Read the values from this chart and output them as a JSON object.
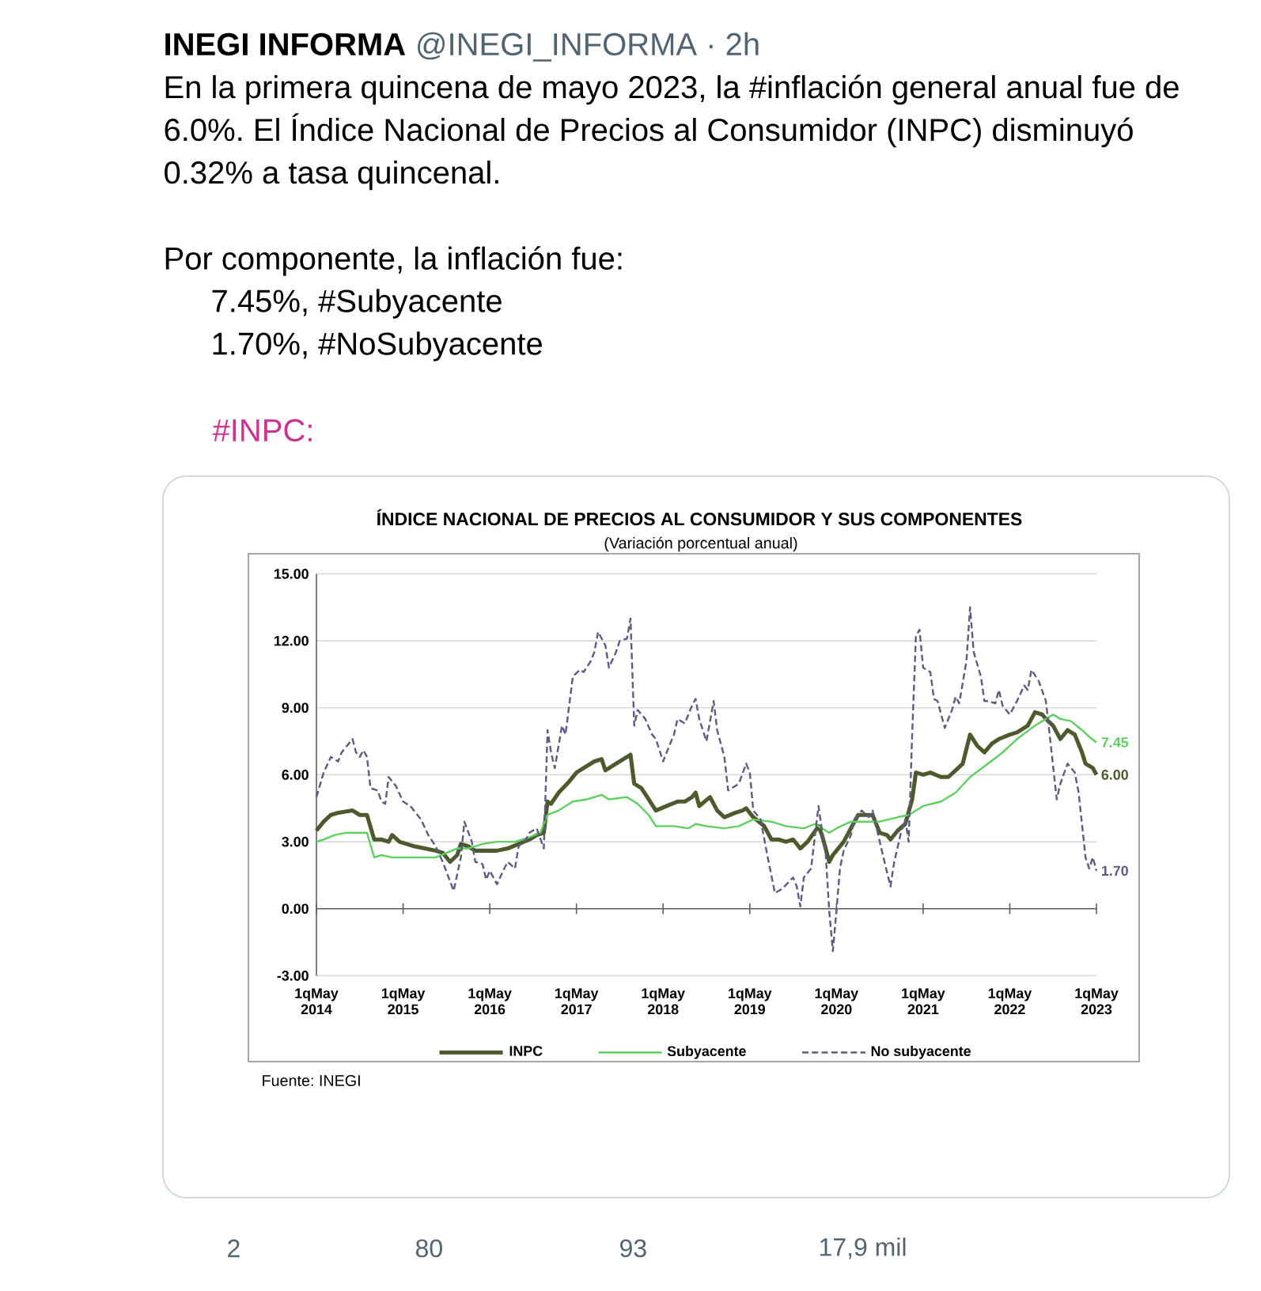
{
  "chart_data": {
    "type": "line",
    "title": "ÍNDICE NACIONAL DE PRECIOS AL CONSUMIDOR Y SUS COMPONENTES",
    "subtitle": "(Variación porcentual anual)",
    "annotations": [
      "INEGI INFORMA",
      "@INEGI_INFORMA · 2h",
      "En la primera quincena de mayo 2023, la #inflación general anual fue de 6.0%. El Índice Nacional de Precios al Consumidor (INPC) disminuyó 0.32% a tasa quincenal.",
      "Por componente, la inflación fue:",
      "7.45%, #Subyacente",
      "1.70%, #NoSubyacente",
      "#INPC:",
      "Fuente: INEGI",
      "2",
      "80",
      "93",
      "17,9 mil"
    ],
    "xlim": [
      "2014-05-01",
      "2023-05-01"
    ],
    "xticks": [
      {
        "value": "2014-05-01",
        "label": "1qMay 2014"
      },
      {
        "value": "2015-05-01",
        "label": "1qMay 2015"
      },
      {
        "value": "2016-05-01",
        "label": "1qMay 2016"
      },
      {
        "value": "2017-05-01",
        "label": "1qMay 2017"
      },
      {
        "value": "2018-05-01",
        "label": "1qMay 2018"
      },
      {
        "value": "2019-05-01",
        "label": "1qMay 2019"
      },
      {
        "value": "2020-05-01",
        "label": "1qMay 2020"
      },
      {
        "value": "2021-05-01",
        "label": "1qMay 2021"
      },
      {
        "value": "2022-05-01",
        "label": "1qMay 2022"
      },
      {
        "value": "2023-05-01",
        "label": "1qMay 2023"
      }
    ],
    "ylim": [
      -3,
      15
    ],
    "yticks": [
      {
        "value": -3,
        "label": "-3.00"
      },
      {
        "value": 0,
        "label": "0.00"
      },
      {
        "value": 3,
        "label": "3.00"
      },
      {
        "value": 6,
        "label": "6.00"
      },
      {
        "value": 9,
        "label": "9.00"
      },
      {
        "value": 12,
        "label": "12.00"
      },
      {
        "value": 15,
        "label": "15.00"
      }
    ],
    "grid": "y",
    "legend": "bottom",
    "series": [
      {
        "name": "INPC",
        "color": "#4d5a2e",
        "x": [
          "2014-05-01",
          "2014-06-01",
          "2014-07-01",
          "2014-08-01",
          "2014-10-01",
          "2014-11-01",
          "2014-12-01",
          "2015-01-01",
          "2015-02-01",
          "2015-03-01",
          "2015-03-16",
          "2015-04-16",
          "2015-05-16",
          "2015-06-16",
          "2015-08-01",
          "2015-09-16",
          "2015-10-16",
          "2015-11-16",
          "2015-12-16",
          "2016-01-01",
          "2016-02-01",
          "2016-03-01",
          "2016-05-01",
          "2016-06-01",
          "2016-07-16",
          "2016-09-01",
          "2016-10-16",
          "2016-11-16",
          "2016-12-16",
          "2017-01-01",
          "2017-01-16",
          "2017-02-16",
          "2017-04-01",
          "2017-05-01",
          "2017-06-01",
          "2017-07-16",
          "2017-08-16",
          "2017-09-01",
          "2017-10-16",
          "2017-11-16",
          "2017-12-16",
          "2018-01-01",
          "2018-02-01",
          "2018-03-01",
          "2018-04-01",
          "2018-05-16",
          "2018-07-01",
          "2018-08-01",
          "2018-09-01",
          "2018-09-16",
          "2018-10-01",
          "2018-11-16",
          "2018-12-16",
          "2019-01-16",
          "2019-03-01",
          "2019-04-01",
          "2019-04-16",
          "2019-05-16",
          "2019-07-01",
          "2019-08-01",
          "2019-09-01",
          "2019-10-01",
          "2019-11-01",
          "2019-12-01",
          "2020-01-01",
          "2020-02-16",
          "2020-03-01",
          "2020-04-01",
          "2020-04-16",
          "2020-06-01",
          "2020-07-01",
          "2020-08-01",
          "2020-09-01",
          "2020-10-01",
          "2020-11-01",
          "2020-12-01",
          "2020-12-16",
          "2021-01-16",
          "2021-02-16",
          "2021-03-16",
          "2021-04-01",
          "2021-05-01",
          "2021-06-01",
          "2021-07-16",
          "2021-08-16",
          "2021-09-16",
          "2021-10-16",
          "2021-11-16",
          "2021-12-16",
          "2022-01-16",
          "2022-02-16",
          "2022-03-16",
          "2022-05-01",
          "2022-06-01",
          "2022-07-16",
          "2022-08-16",
          "2022-09-16",
          "2022-10-01",
          "2022-11-01",
          "2022-12-01",
          "2023-01-01",
          "2023-02-01",
          "2023-03-01",
          "2023-03-16",
          "2023-04-16",
          "2023-05-01"
        ],
        "values": [
          3.5,
          3.9,
          4.2,
          4.3,
          4.4,
          4.2,
          4.2,
          3.1,
          3.1,
          3.0,
          3.3,
          3.0,
          2.9,
          2.8,
          2.7,
          2.6,
          2.5,
          2.1,
          2.4,
          2.9,
          2.8,
          2.6,
          2.6,
          2.6,
          2.7,
          2.9,
          3.1,
          3.3,
          3.4,
          4.8,
          4.7,
          5.2,
          5.7,
          6.1,
          6.3,
          6.6,
          6.7,
          6.2,
          6.5,
          6.7,
          6.9,
          5.6,
          5.4,
          4.9,
          4.4,
          4.6,
          4.8,
          4.8,
          5.0,
          5.2,
          4.6,
          5.0,
          4.4,
          4.1,
          4.3,
          4.4,
          4.5,
          4.1,
          3.7,
          3.1,
          3.1,
          3.0,
          3.1,
          2.7,
          3.0,
          3.7,
          3.3,
          2.1,
          2.4,
          3.0,
          3.6,
          4.2,
          4.2,
          4.2,
          3.4,
          3.3,
          3.1,
          3.5,
          3.8,
          4.9,
          6.1,
          6.0,
          6.1,
          5.9,
          5.9,
          6.2,
          6.5,
          7.8,
          7.3,
          7.0,
          7.4,
          7.6,
          7.8,
          7.9,
          8.2,
          8.8,
          8.7,
          8.5,
          8.2,
          7.6,
          8.0,
          7.8,
          7.0,
          6.5,
          6.3,
          6.0
        ],
        "value_labels": [
          null,
          null,
          null,
          null,
          null,
          null,
          null,
          null,
          null,
          null,
          null,
          null,
          null,
          null,
          null,
          null,
          null,
          null,
          null,
          null,
          null,
          null,
          null,
          null,
          null,
          null,
          null,
          null,
          null,
          null,
          null,
          null,
          null,
          null,
          null,
          null,
          null,
          null,
          null,
          null,
          null,
          null,
          null,
          null,
          null,
          null,
          null,
          null,
          null,
          null,
          null,
          null,
          null,
          null,
          null,
          null,
          null,
          null,
          null,
          null,
          null,
          null,
          null,
          null,
          null,
          null,
          null,
          null,
          null,
          null,
          null,
          null,
          null,
          null,
          null,
          null,
          null,
          null,
          null,
          null,
          null,
          null,
          null,
          null,
          null,
          null,
          null,
          null,
          null,
          null,
          null,
          null,
          null,
          null,
          null,
          null,
          null,
          null,
          null,
          null,
          null,
          null,
          null,
          null,
          null,
          "6.00"
        ]
      },
      {
        "name": "Subyacente",
        "color": "#5fcf5f",
        "x": [
          "2014-05-01",
          "2014-06-01",
          "2014-07-16",
          "2014-09-01",
          "2014-10-16",
          "2014-12-01",
          "2015-01-01",
          "2015-02-01",
          "2015-03-16",
          "2015-05-01",
          "2015-07-01",
          "2015-09-16",
          "2015-11-01",
          "2015-12-16",
          "2016-02-01",
          "2016-04-01",
          "2016-06-01",
          "2016-08-16",
          "2016-10-16",
          "2016-12-01",
          "2017-01-01",
          "2017-02-16",
          "2017-04-16",
          "2017-06-16",
          "2017-08-16",
          "2017-09-16",
          "2017-12-01",
          "2018-01-16",
          "2018-03-01",
          "2018-04-01",
          "2018-06-16",
          "2018-08-16",
          "2018-09-16",
          "2018-11-01",
          "2019-01-16",
          "2019-03-16",
          "2019-05-16",
          "2019-08-01",
          "2019-10-01",
          "2019-12-16",
          "2020-02-01",
          "2020-04-01",
          "2020-05-01",
          "2020-07-01",
          "2020-09-01",
          "2020-11-01",
          "2021-01-16",
          "2021-03-01",
          "2021-05-01",
          "2021-07-16",
          "2021-09-16",
          "2021-11-16",
          "2022-02-01",
          "2022-04-01",
          "2022-06-01",
          "2022-08-16",
          "2022-10-01",
          "2022-11-01",
          "2022-12-01",
          "2023-01-16",
          "2023-03-01",
          "2023-04-01",
          "2023-05-01"
        ],
        "values": [
          3.0,
          3.1,
          3.3,
          3.4,
          3.4,
          3.4,
          2.3,
          2.4,
          2.3,
          2.3,
          2.3,
          2.3,
          2.5,
          2.7,
          2.7,
          2.9,
          3.0,
          3.0,
          3.2,
          3.4,
          4.2,
          4.4,
          4.8,
          4.9,
          5.1,
          4.9,
          5.0,
          4.7,
          4.2,
          3.7,
          3.7,
          3.6,
          3.8,
          3.7,
          3.6,
          3.7,
          4.0,
          3.9,
          3.7,
          3.6,
          3.8,
          3.4,
          3.6,
          3.9,
          3.9,
          3.9,
          4.1,
          4.2,
          4.6,
          4.8,
          5.2,
          5.9,
          6.5,
          7.0,
          7.6,
          8.2,
          8.5,
          8.7,
          8.5,
          8.4,
          8.0,
          7.7,
          7.45
        ],
        "value_labels": [
          null,
          null,
          null,
          null,
          null,
          null,
          null,
          null,
          null,
          null,
          null,
          null,
          null,
          null,
          null,
          null,
          null,
          null,
          null,
          null,
          null,
          null,
          null,
          null,
          null,
          null,
          null,
          null,
          null,
          null,
          null,
          null,
          null,
          null,
          null,
          null,
          null,
          null,
          null,
          null,
          null,
          null,
          null,
          null,
          null,
          null,
          null,
          null,
          null,
          null,
          null,
          null,
          null,
          null,
          null,
          null,
          null,
          null,
          null,
          null,
          null,
          null,
          "7.45"
        ]
      },
      {
        "name": "No subyacente",
        "color": "#5c5c80",
        "line_style": "dashed",
        "x": [
          "2014-05-01",
          "2014-06-01",
          "2014-07-01",
          "2014-08-01",
          "2014-08-16",
          "2014-10-01",
          "2014-10-16",
          "2014-11-01",
          "2014-11-16",
          "2014-12-01",
          "2014-12-16",
          "2015-01-16",
          "2015-02-01",
          "2015-02-16",
          "2015-03-01",
          "2015-04-01",
          "2015-05-01",
          "2015-06-01",
          "2015-07-16",
          "2015-08-16",
          "2015-09-16",
          "2015-10-16",
          "2015-12-01",
          "2016-01-01",
          "2016-01-16",
          "2016-02-16",
          "2016-03-01",
          "2016-04-01",
          "2016-04-16",
          "2016-05-01",
          "2016-06-01",
          "2016-07-01",
          "2016-07-16",
          "2016-08-16",
          "2016-09-01",
          "2016-10-01",
          "2016-10-16",
          "2016-11-16",
          "2016-12-16",
          "2017-01-01",
          "2017-01-16",
          "2017-02-01",
          "2017-03-01",
          "2017-03-16",
          "2017-04-16",
          "2017-05-16",
          "2017-06-01",
          "2017-07-01",
          "2017-07-16",
          "2017-08-01",
          "2017-09-01",
          "2017-09-16",
          "2017-10-16",
          "2017-11-01",
          "2017-12-01",
          "2017-12-16",
          "2018-01-01",
          "2018-01-16",
          "2018-02-16",
          "2018-03-16",
          "2018-04-01",
          "2018-05-01",
          "2018-05-16",
          "2018-06-16",
          "2018-07-01",
          "2018-08-01",
          "2018-09-01",
          "2018-09-16",
          "2018-10-01",
          "2018-11-01",
          "2018-12-01",
          "2018-12-16",
          "2019-01-16",
          "2019-02-01",
          "2019-03-01",
          "2019-03-16",
          "2019-04-16",
          "2019-05-01",
          "2019-05-16",
          "2019-06-16",
          "2019-07-16",
          "2019-08-16",
          "2019-09-16",
          "2019-11-01",
          "2019-11-16",
          "2019-12-01",
          "2019-12-16",
          "2020-01-16",
          "2020-02-16",
          "2020-03-01",
          "2020-03-16",
          "2020-04-01",
          "2020-04-16",
          "2020-05-01",
          "2020-05-16",
          "2020-06-01",
          "2020-07-01",
          "2020-07-16",
          "2020-08-16",
          "2020-09-16",
          "2020-10-01",
          "2020-11-01",
          "2020-11-16",
          "2020-12-16",
          "2021-01-01",
          "2021-02-01",
          "2021-02-16",
          "2021-03-01",
          "2021-03-16",
          "2021-04-01",
          "2021-04-16",
          "2021-05-01",
          "2021-06-01",
          "2021-06-16",
          "2021-07-01",
          "2021-08-01",
          "2021-09-01",
          "2021-09-16",
          "2021-10-01",
          "2021-11-01",
          "2021-11-16",
          "2021-12-01",
          "2022-01-01",
          "2022-01-16",
          "2022-02-01",
          "2022-03-01",
          "2022-03-16",
          "2022-04-01",
          "2022-05-01",
          "2022-06-01",
          "2022-07-01",
          "2022-07-16",
          "2022-08-01",
          "2022-09-01",
          "2022-10-01",
          "2022-10-16",
          "2022-11-16",
          "2022-12-01",
          "2023-01-01",
          "2023-02-01",
          "2023-02-16",
          "2023-03-16",
          "2023-04-01",
          "2023-04-16",
          "2023-05-01"
        ],
        "values": [
          5.0,
          6.1,
          6.8,
          6.6,
          7.0,
          7.6,
          7.0,
          6.8,
          7.1,
          6.8,
          5.4,
          5.3,
          4.8,
          4.7,
          5.9,
          5.5,
          4.8,
          4.6,
          4.0,
          3.3,
          2.8,
          2.1,
          0.8,
          2.3,
          3.9,
          3.0,
          2.1,
          2.0,
          1.3,
          1.7,
          1.1,
          1.8,
          2.1,
          1.8,
          2.8,
          3.1,
          3.4,
          3.6,
          2.7,
          8.0,
          7.0,
          6.3,
          8.2,
          7.8,
          10.4,
          10.7,
          10.6,
          11.1,
          11.5,
          12.4,
          11.8,
          10.8,
          11.5,
          12.0,
          12.1,
          13.0,
          8.2,
          8.9,
          8.5,
          7.8,
          7.6,
          6.6,
          7.0,
          7.8,
          8.5,
          8.3,
          9.1,
          9.4,
          8.5,
          7.5,
          9.3,
          8.0,
          6.8,
          5.3,
          5.5,
          5.6,
          6.5,
          6.1,
          4.4,
          4.0,
          2.3,
          0.7,
          0.9,
          1.4,
          1.0,
          0.1,
          1.4,
          1.8,
          4.6,
          3.5,
          2.6,
          -0.1,
          -1.9,
          -0.1,
          1.8,
          2.6,
          3.3,
          4.0,
          4.4,
          4.1,
          4.4,
          3.0,
          2.3,
          1.0,
          2.1,
          3.5,
          4.0,
          3.0,
          7.8,
          12.2,
          12.5,
          10.8,
          10.6,
          9.4,
          9.3,
          8.1,
          8.9,
          9.5,
          9.2,
          11.1,
          13.5,
          11.5,
          10.4,
          9.3,
          9.3,
          9.2,
          9.8,
          9.1,
          8.7,
          9.3,
          10.0,
          9.8,
          10.7,
          10.2,
          9.3,
          7.9,
          4.9,
          5.6,
          6.5,
          6.1,
          5.2,
          2.3,
          1.8,
          2.3,
          1.7
        ],
        "value_labels": [
          null,
          null,
          null,
          null,
          null,
          null,
          null,
          null,
          null,
          null,
          null,
          null,
          null,
          null,
          null,
          null,
          null,
          null,
          null,
          null,
          null,
          null,
          null,
          null,
          null,
          null,
          null,
          null,
          null,
          null,
          null,
          null,
          null,
          null,
          null,
          null,
          null,
          null,
          null,
          null,
          null,
          null,
          null,
          null,
          null,
          null,
          null,
          null,
          null,
          null,
          null,
          null,
          null,
          null,
          null,
          null,
          null,
          null,
          null,
          null,
          null,
          null,
          null,
          null,
          null,
          null,
          null,
          null,
          null,
          null,
          null,
          null,
          null,
          null,
          null,
          null,
          null,
          null,
          null,
          null,
          null,
          null,
          null,
          null,
          null,
          null,
          null,
          null,
          null,
          null,
          null,
          null,
          null,
          null,
          null,
          null,
          null,
          null,
          null,
          null,
          null,
          null,
          null,
          null,
          null,
          null,
          null,
          null,
          null,
          null,
          null,
          null,
          null,
          null,
          null,
          null,
          null,
          null,
          null,
          null,
          null,
          null,
          null,
          null,
          null,
          null,
          null,
          null,
          null,
          null,
          null,
          null,
          null,
          null,
          null,
          null,
          null,
          null,
          null,
          null,
          null,
          null,
          null,
          null,
          "1.70"
        ]
      }
    ]
  }
}
